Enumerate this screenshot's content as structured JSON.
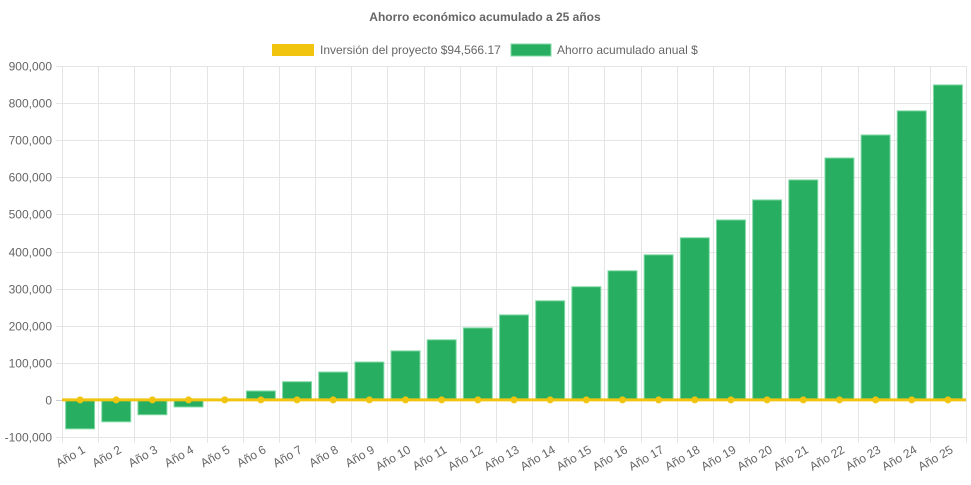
{
  "chart_data": {
    "type": "bar",
    "title": "Ahorro económico acumulado a 25 años",
    "xlabel": "",
    "ylabel": "",
    "ylim": [
      -100000,
      900000
    ],
    "yticks": [
      "900,000",
      "800,000",
      "700,000",
      "600,000",
      "500,000",
      "400,000",
      "300,000",
      "200,000",
      "100,000",
      "0",
      "-100,000"
    ],
    "ytick_values": [
      900000,
      800000,
      700000,
      600000,
      500000,
      400000,
      300000,
      200000,
      100000,
      0,
      -100000
    ],
    "grid": true,
    "legend_position": "top",
    "categories": [
      "Año 1",
      "Año 2",
      "Año 3",
      "Año 4",
      "Año 5",
      "Año 6",
      "Año 7",
      "Año 8",
      "Año 9",
      "Año 10",
      "Año 11",
      "Año 12",
      "Año 13",
      "Año 14",
      "Año 15",
      "Año 16",
      "Año 17",
      "Año 18",
      "Año 19",
      "Año 20",
      "Año 21",
      "Año 22",
      "Año 23",
      "Año 24",
      "Año 25"
    ],
    "series": [
      {
        "name": "Inversión del proyecto $94,566.17",
        "type": "line",
        "color": "#f1c40f",
        "values": [
          0,
          0,
          0,
          0,
          0,
          0,
          0,
          0,
          0,
          0,
          0,
          0,
          0,
          0,
          0,
          0,
          0,
          0,
          0,
          0,
          0,
          0,
          0,
          0,
          0
        ]
      },
      {
        "name": "Ahorro acumulado anual $",
        "type": "bar",
        "color": "#27ae60",
        "values": [
          -78000,
          -59000,
          -40000,
          -19000,
          1000,
          24000,
          49000,
          75000,
          102000,
          132000,
          162000,
          194000,
          229000,
          267000,
          305000,
          348000,
          391000,
          437000,
          485000,
          539000,
          593000,
          652000,
          714000,
          779000,
          849000
        ]
      }
    ]
  }
}
